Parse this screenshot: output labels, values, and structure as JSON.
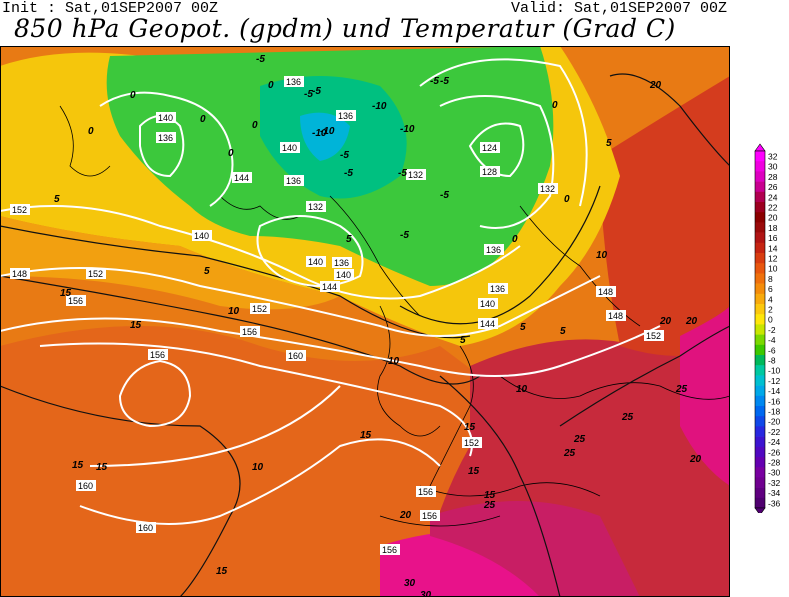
{
  "header": {
    "init": "Init : Sat,01SEP2007 00Z",
    "valid": "Valid: Sat,01SEP2007 00Z",
    "title": "850 hPa Geopot. (gpdm) und Temperatur (Grad C)"
  },
  "legend": {
    "levels": [
      "32",
      "30",
      "28",
      "26",
      "24",
      "22",
      "20",
      "18",
      "16",
      "14",
      "12",
      "10",
      "8",
      "6",
      "4",
      "2",
      "0",
      "-2",
      "-4",
      "-6",
      "-8",
      "-10",
      "-12",
      "-14",
      "-16",
      "-18",
      "-20",
      "-22",
      "-24",
      "-26",
      "-28",
      "-30",
      "-32",
      "-34",
      "-36"
    ],
    "colors": [
      "#ff00ff",
      "#f000e0",
      "#dd00c0",
      "#c80090",
      "#b00050",
      "#9c0020",
      "#8b0000",
      "#9a0a0a",
      "#b01414",
      "#c52412",
      "#d83c10",
      "#e8560e",
      "#ef700c",
      "#f48c0a",
      "#f8aa0c",
      "#fcc80e",
      "#ffe60a",
      "#c8e600",
      "#7ad800",
      "#3cc800",
      "#00b85a",
      "#00c8a0",
      "#00c0d0",
      "#00a8e8",
      "#0088f0",
      "#0068f0",
      "#1048e8",
      "#2828e0",
      "#3c14d0",
      "#5008c0",
      "#6400b0",
      "#7800a0",
      "#700090",
      "#600080",
      "#500070"
    ]
  },
  "map": {
    "geopotential_labels": [
      "152",
      "148",
      "152",
      "156",
      "152",
      "156",
      "160",
      "156",
      "160",
      "160",
      "156",
      "156",
      "136",
      "140",
      "136",
      "144",
      "140",
      "136",
      "132",
      "136",
      "140",
      "144",
      "132",
      "128",
      "124",
      "132",
      "136",
      "140",
      "144",
      "136",
      "140",
      "148",
      "148",
      "152",
      "152",
      "156",
      "140",
      "136"
    ],
    "temperature_labels": [
      "-5",
      "-5",
      "-5",
      "-5",
      "-5",
      "-10",
      "-10",
      "-10",
      "-5",
      "-5",
      "-5",
      "-5",
      "-5",
      "-10",
      "0",
      "0",
      "0",
      "0",
      "0",
      "0",
      "0",
      "0",
      "0",
      "5",
      "5",
      "5",
      "5",
      "5",
      "5",
      "5",
      "10",
      "10",
      "10",
      "10",
      "10",
      "15",
      "15",
      "15",
      "15",
      "15",
      "15",
      "15",
      "15",
      "20",
      "20",
      "20",
      "20",
      "20",
      "25",
      "25",
      "25",
      "25",
      "25",
      "30",
      "30",
      "15"
    ]
  }
}
